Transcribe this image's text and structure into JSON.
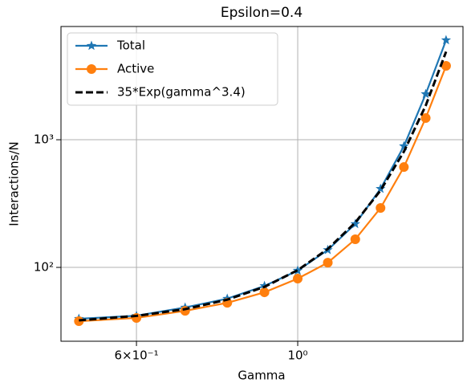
{
  "chart_data": {
    "type": "line",
    "title": "Epsilon=0.4",
    "xlabel": "Gamma",
    "ylabel": "Interactions/N",
    "xscale": "log",
    "yscale": "log",
    "grid": true,
    "legend": "upper left",
    "x": [
      0.5,
      0.6,
      0.7,
      0.8,
      0.9,
      1.0,
      1.1,
      1.2,
      1.3,
      1.4,
      1.5,
      1.6
    ],
    "series": [
      {
        "name": "Total",
        "color": "#1f77b4",
        "marker": "star",
        "dash": "solid",
        "values": [
          39.6,
          41.8,
          48.5,
          56.9,
          71.6,
          94.4,
          137,
          219,
          413,
          891,
          2280,
          6030
        ]
      },
      {
        "name": "Active",
        "color": "#ff7f0e",
        "marker": "circle",
        "dash": "solid",
        "values": [
          37.9,
          40.2,
          45.7,
          52.8,
          63.8,
          81.7,
          109,
          166,
          292,
          611,
          1480,
          3790
        ]
      },
      {
        "name": "35*Exp(gamma^3.4)",
        "color": "#000000",
        "marker": "none",
        "dash": "dashed",
        "values": [
          38.5,
          41.7,
          47.1,
          55.9,
          70.4,
          95.1,
          139.5,
          224.5,
          401,
          808,
          1852,
          4893
        ]
      }
    ],
    "xlim": [
      0.4724,
      1.688
    ],
    "ylim": [
      26.4,
      7710
    ],
    "xticks": [
      {
        "value": 0.6,
        "label": "6×10⁻¹"
      },
      {
        "value": 1,
        "label": "10⁰"
      }
    ],
    "yticks": [
      {
        "value": 100,
        "label": "10²"
      },
      {
        "value": 1000,
        "label": "10³"
      }
    ]
  }
}
